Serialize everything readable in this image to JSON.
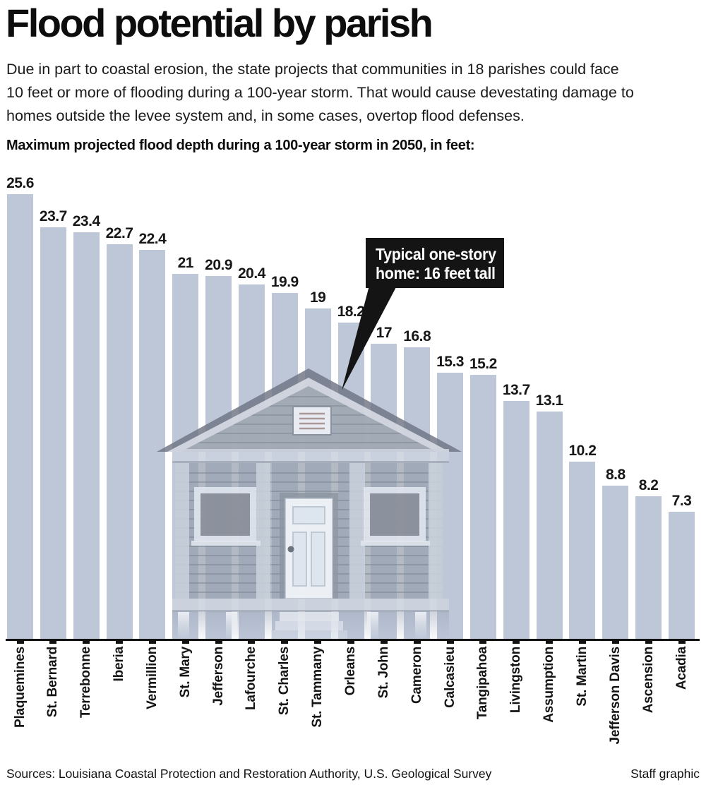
{
  "header": {
    "title": "Flood potential by parish",
    "intro_lines": [
      "Due in part to coastal erosion, the state projects that communities in 18 parishes could face",
      "10 feet or more of flooding during a 100-year storm. That would cause devestating damage to",
      "homes outside the levee system and, in some cases, overtop flood defenses."
    ],
    "subtitle": "Maximum projected flood depth during a 100-year storm in 2050, in feet:"
  },
  "chart_data": {
    "type": "bar",
    "title": "Maximum projected flood depth during a 100-year storm in 2050, in feet",
    "categories": [
      "Plaquemines",
      "St. Bernard",
      "Terrebonne",
      "Iberia",
      "Vermillion",
      "St. Mary",
      "Jefferson",
      "Lafourche",
      "St. Charles",
      "St. Tammany",
      "Orleans",
      "St. John",
      "Cameron",
      "Calcasieu",
      "Tangipahoa",
      "Livingston",
      "Assumption",
      "St. Martin",
      "Jefferson Davis",
      "Ascension",
      "Acadia"
    ],
    "values": [
      25.6,
      23.7,
      23.4,
      22.7,
      22.4,
      21,
      20.9,
      20.4,
      19.9,
      19,
      18.2,
      17,
      16.8,
      15.3,
      15.2,
      13.7,
      13.1,
      10.2,
      8.8,
      8.2,
      7.3
    ],
    "ylim": [
      0,
      26
    ],
    "grid": false,
    "legend": "none",
    "bar_color": "#bdc7d8",
    "value_labels_shown": true,
    "annotation": {
      "text": "Typical one-story home: 16 feet tall",
      "reference_height_feet": 16
    }
  },
  "callout": {
    "line1": "Typical one-story",
    "line2": "home: 16 feet tall",
    "bg": "#141414",
    "text_color": "#ffffff"
  },
  "footer": {
    "sources": "Sources: Louisiana Coastal Protection and Restoration Authority, U.S. Geological Survey",
    "credit": "Staff graphic"
  }
}
